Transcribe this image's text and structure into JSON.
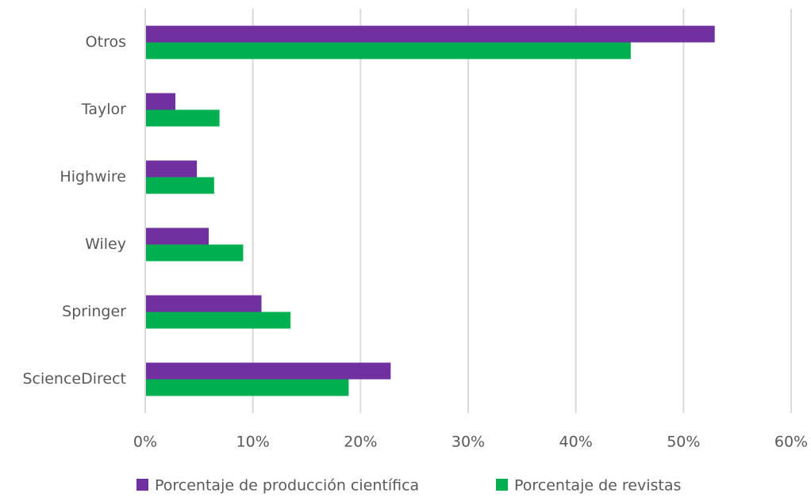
{
  "chart_data": {
    "type": "hbar",
    "categories": [
      "Otros",
      "Taylor",
      "Highwire",
      "Wiley",
      "Springer",
      "ScienceDirect"
    ],
    "series": [
      {
        "name": "Porcentaje de producción científica",
        "color": "#7030a0",
        "values": [
          52.9,
          2.8,
          4.8,
          5.9,
          10.8,
          22.8
        ]
      },
      {
        "name": "Porcentaje de revistas",
        "color": "#00b050",
        "values": [
          45.1,
          6.9,
          6.4,
          9.1,
          13.5,
          18.9
        ]
      }
    ],
    "xlim": [
      0,
      60
    ],
    "xticks": [
      {
        "value": 0,
        "label": "0%"
      },
      {
        "value": 10,
        "label": "10%"
      },
      {
        "value": 20,
        "label": "20%"
      },
      {
        "value": 30,
        "label": "30%"
      },
      {
        "value": 40,
        "label": "40%"
      },
      {
        "value": 50,
        "label": "50%"
      },
      {
        "value": 60,
        "label": "60%"
      }
    ],
    "grid": true,
    "legend": "bottom"
  }
}
